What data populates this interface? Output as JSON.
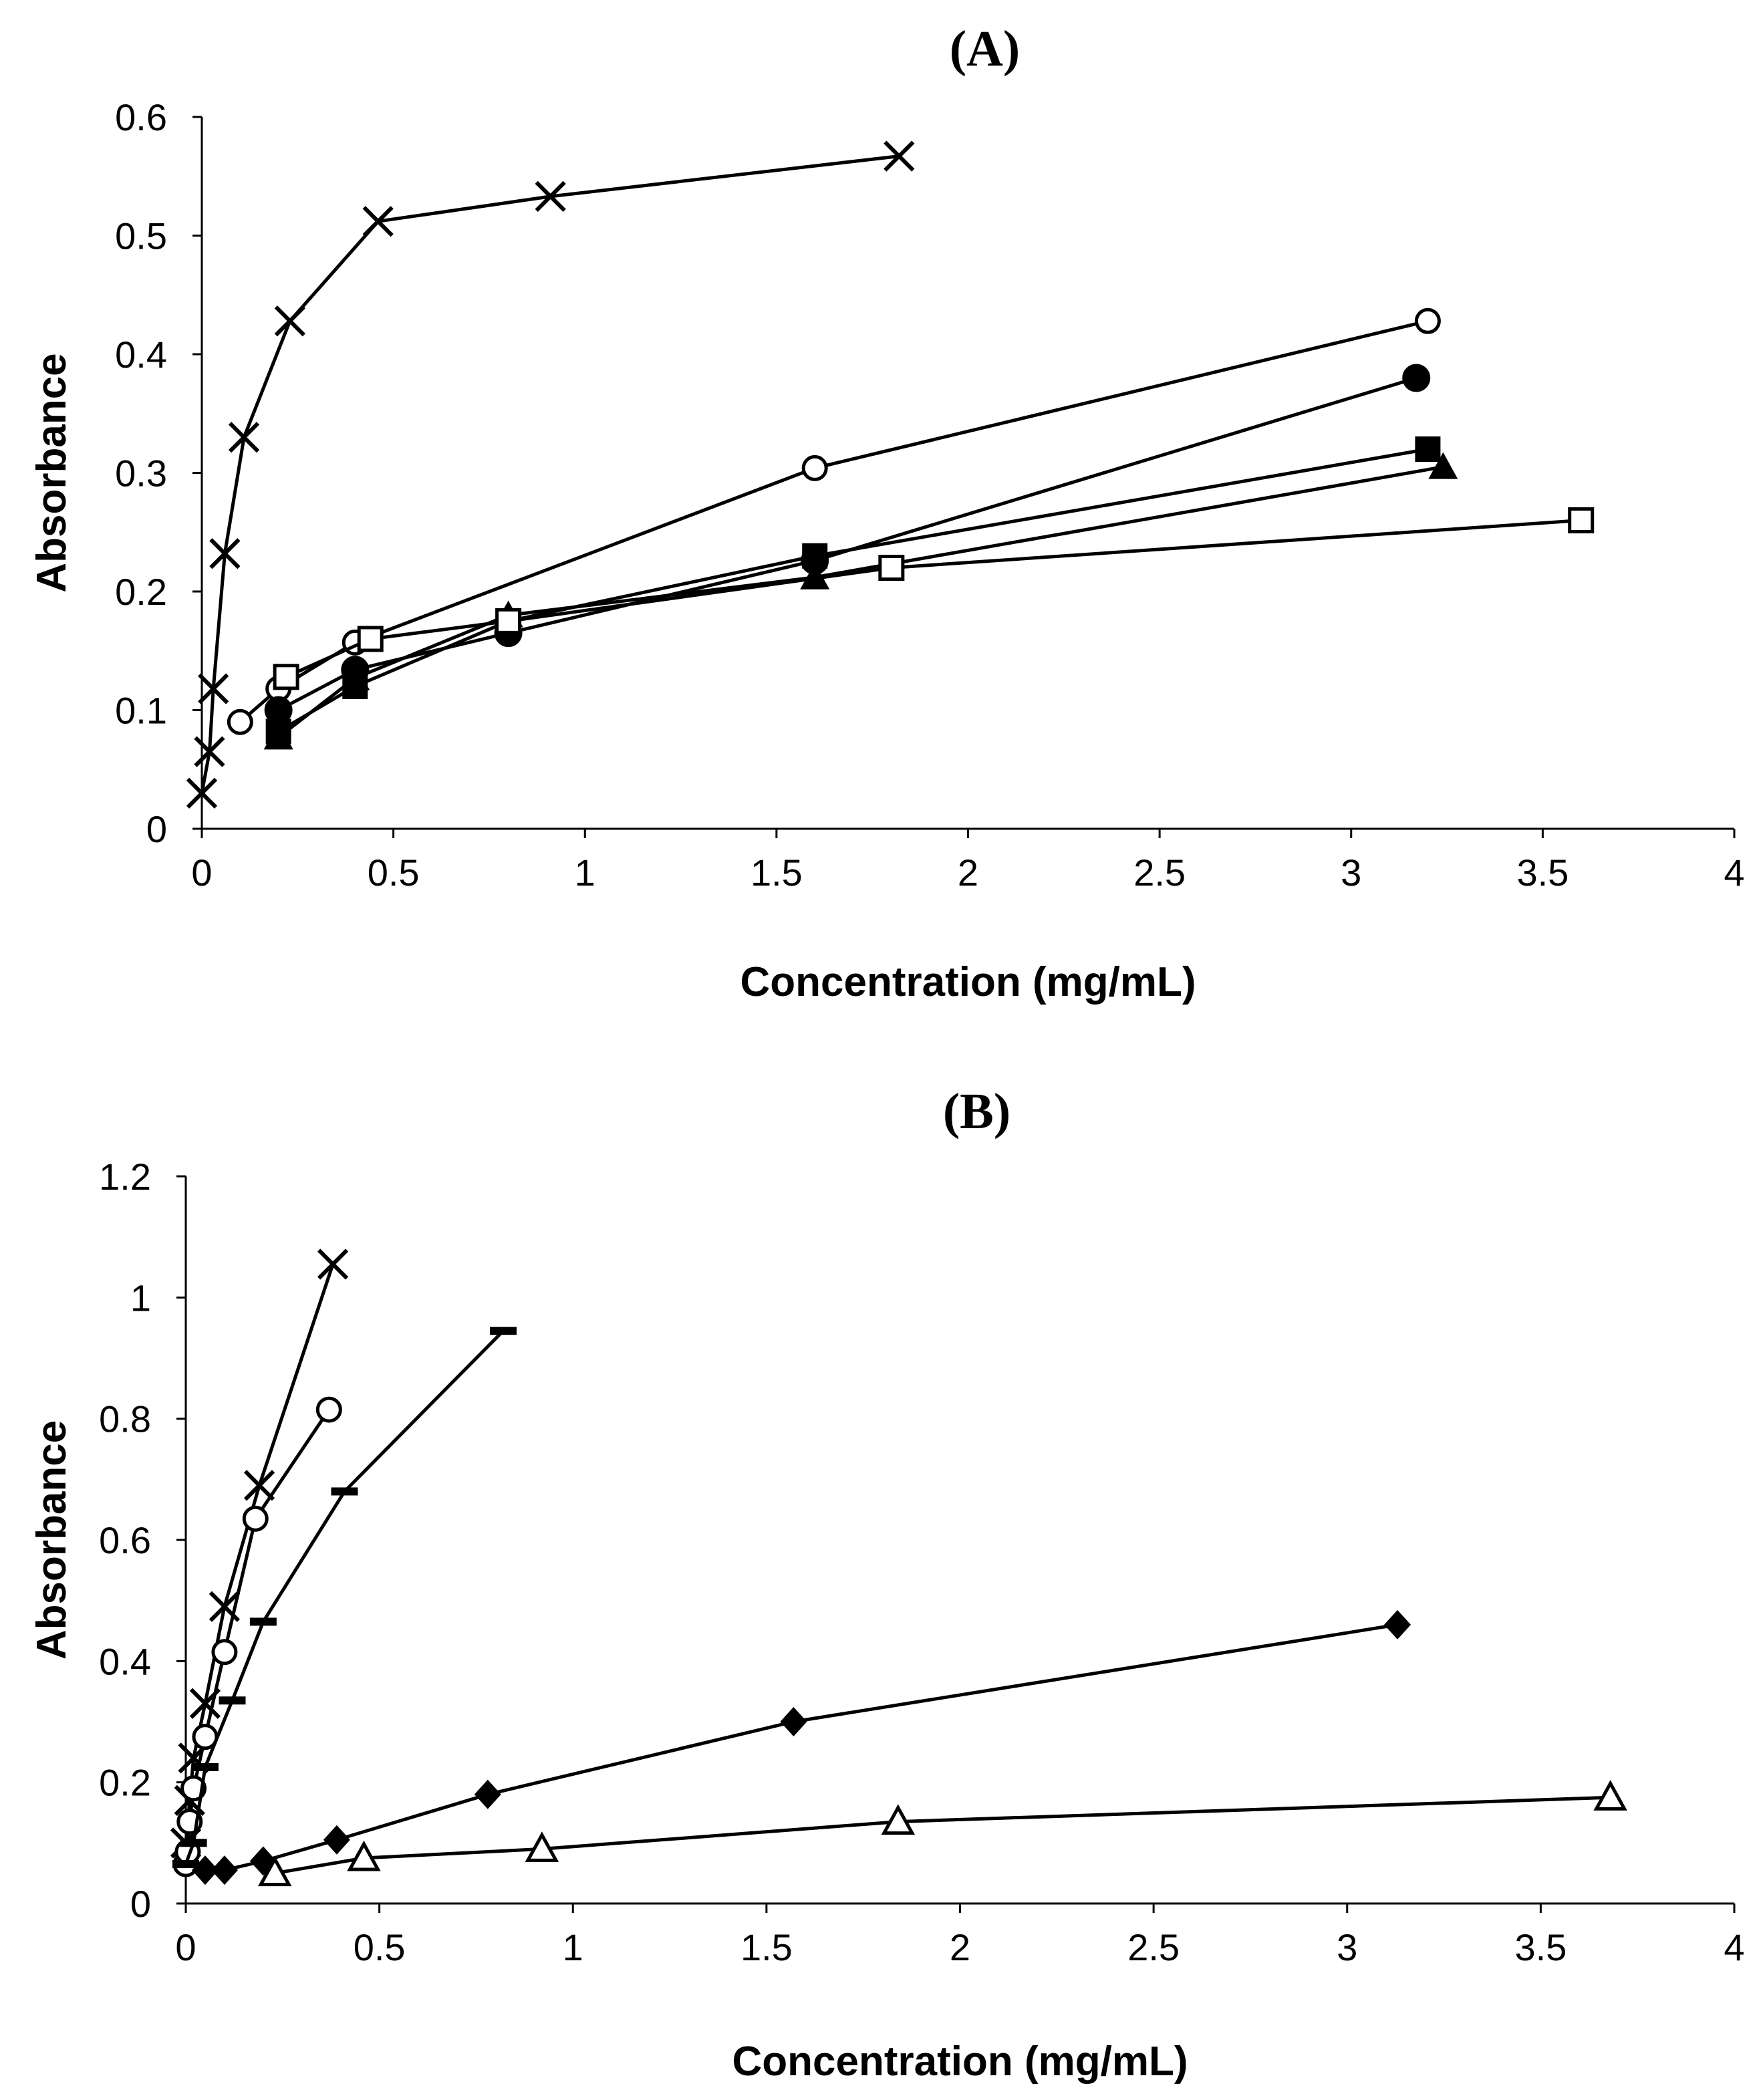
{
  "chart_data": [
    {
      "type": "line",
      "title": "(A)",
      "xlabel": "Concentration (mg/mL)",
      "ylabel": "Absorbance",
      "xlim": [
        0,
        4
      ],
      "ylim": [
        0,
        0.6
      ],
      "xticks": [
        "0",
        "0.5",
        "1",
        "1.5",
        "2",
        "2.5",
        "3",
        "3.5",
        "4"
      ],
      "yticks": [
        "0",
        "0.1",
        "0.2",
        "0.3",
        "0.4",
        "0.5",
        "0.6"
      ],
      "grid": false,
      "series": [
        {
          "name": "cross",
          "marker": "x",
          "x": [
            0.0,
            0.02,
            0.03,
            0.06,
            0.11,
            0.23,
            0.46,
            0.91,
            1.82
          ],
          "y": [
            0.03,
            0.065,
            0.118,
            0.232,
            0.33,
            0.428,
            0.512,
            0.533,
            0.567
          ]
        },
        {
          "name": "open-circle",
          "marker": "open-circle",
          "x": [
            0.1,
            0.2,
            0.4,
            1.6,
            3.2
          ],
          "y": [
            0.09,
            0.118,
            0.157,
            0.304,
            0.428
          ]
        },
        {
          "name": "filled-circle",
          "marker": "filled-circle",
          "x": [
            0.2,
            0.4,
            0.8,
            1.6,
            3.17
          ],
          "y": [
            0.1,
            0.134,
            0.165,
            0.226,
            0.38
          ]
        },
        {
          "name": "filled-square",
          "marker": "filled-square",
          "x": [
            0.2,
            0.4,
            0.8,
            1.6,
            3.2
          ],
          "y": [
            0.082,
            0.12,
            0.175,
            0.23,
            0.32
          ]
        },
        {
          "name": "filled-triangle",
          "marker": "filled-triangle",
          "x": [
            0.2,
            0.4,
            0.8,
            1.6,
            3.24
          ],
          "y": [
            0.077,
            0.127,
            0.18,
            0.212,
            0.305
          ]
        },
        {
          "name": "open-square",
          "marker": "open-square",
          "x": [
            0.22,
            0.44,
            0.8,
            1.8,
            3.6
          ],
          "y": [
            0.128,
            0.16,
            0.175,
            0.22,
            0.26
          ]
        }
      ]
    },
    {
      "type": "line",
      "title": "(B)",
      "xlabel": "Concentration (mg/mL)",
      "ylabel": "Absorbance",
      "xlim": [
        0,
        4
      ],
      "ylim": [
        0,
        1.2
      ],
      "xticks": [
        "0",
        "0.5",
        "1",
        "1.5",
        "2",
        "2.5",
        "3",
        "3.5",
        "4"
      ],
      "yticks": [
        "0",
        "0.2",
        "0.4",
        "0.6",
        "0.8",
        "1",
        "1.2"
      ],
      "grid": false,
      "series": [
        {
          "name": "cross",
          "marker": "x",
          "x": [
            0.0,
            0.01,
            0.02,
            0.05,
            0.1,
            0.19,
            0.38
          ],
          "y": [
            0.1,
            0.17,
            0.24,
            0.33,
            0.49,
            0.69,
            1.055
          ]
        },
        {
          "name": "open-circle",
          "marker": "open-circle",
          "x": [
            0.0,
            0.005,
            0.01,
            0.02,
            0.05,
            0.1,
            0.18,
            0.37
          ],
          "y": [
            0.065,
            0.085,
            0.135,
            0.19,
            0.275,
            0.415,
            0.635,
            0.815
          ]
        },
        {
          "name": "dash",
          "marker": "dash",
          "x": [
            0.0,
            0.02,
            0.05,
            0.12,
            0.2,
            0.41,
            0.82
          ],
          "y": [
            0.065,
            0.1,
            0.225,
            0.335,
            0.465,
            0.68,
            0.945
          ]
        },
        {
          "name": "filled-diamond",
          "marker": "filled-diamond",
          "x": [
            0.05,
            0.1,
            0.2,
            0.39,
            0.78,
            1.57,
            3.13
          ],
          "y": [
            0.055,
            0.055,
            0.07,
            0.105,
            0.18,
            0.3,
            0.46
          ]
        },
        {
          "name": "open-triangle",
          "marker": "open-triangle",
          "x": [
            0.23,
            0.46,
            0.92,
            1.84,
            3.68
          ],
          "y": [
            0.05,
            0.075,
            0.09,
            0.135,
            0.175
          ]
        }
      ]
    }
  ]
}
